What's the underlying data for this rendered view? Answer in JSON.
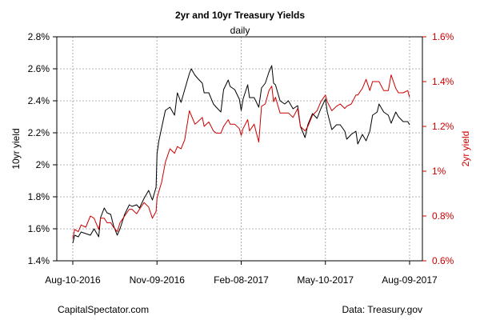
{
  "chart_data": {
    "type": "line",
    "title": "2yr and 10yr Treasury Yields",
    "subtitle": "daily",
    "xlabel": "",
    "ylabel_left": "10yr yield",
    "ylabel_right": "2yr yield",
    "ylim_left": [
      1.4,
      2.8
    ],
    "ylim_right": [
      0.6,
      1.6
    ],
    "grid": true,
    "x_ticks": [
      "Aug-10-2016",
      "Nov-09-2016",
      "Feb-08-2017",
      "May-10-2017",
      "Aug-09-2017"
    ],
    "y_ticks_left": [
      "1.4%",
      "1.6%",
      "1.8%",
      "2%",
      "2.2%",
      "2.4%",
      "2.6%",
      "2.8%"
    ],
    "y_ticks_right": [
      "0.6%",
      "0.8%",
      "1%",
      "1.2%",
      "1.4%",
      "1.6%"
    ],
    "colors": {
      "tenyr": "#000000",
      "twoyr": "#cc0000",
      "grid": "#b0b0b0"
    },
    "series": [
      {
        "axis": "left",
        "values": [
          [
            "2016-08-10",
            1.51
          ],
          [
            "2016-08-12",
            1.56
          ],
          [
            "2016-08-16",
            1.55
          ],
          [
            "2016-08-19",
            1.58
          ],
          [
            "2016-08-24",
            1.57
          ],
          [
            "2016-08-29",
            1.56
          ],
          [
            "2016-09-02",
            1.6
          ],
          [
            "2016-09-07",
            1.55
          ],
          [
            "2016-09-09",
            1.67
          ],
          [
            "2016-09-13",
            1.73
          ],
          [
            "2016-09-16",
            1.7
          ],
          [
            "2016-09-20",
            1.69
          ],
          [
            "2016-09-23",
            1.62
          ],
          [
            "2016-09-27",
            1.56
          ],
          [
            "2016-09-30",
            1.6
          ],
          [
            "2016-10-05",
            1.69
          ],
          [
            "2016-10-10",
            1.75
          ],
          [
            "2016-10-13",
            1.74
          ],
          [
            "2016-10-18",
            1.75
          ],
          [
            "2016-10-21",
            1.73
          ],
          [
            "2016-10-26",
            1.79
          ],
          [
            "2016-10-31",
            1.84
          ],
          [
            "2016-11-04",
            1.78
          ],
          [
            "2016-11-08",
            1.86
          ],
          [
            "2016-11-09",
            2.07
          ],
          [
            "2016-11-11",
            2.15
          ],
          [
            "2016-11-14",
            2.23
          ],
          [
            "2016-11-18",
            2.34
          ],
          [
            "2016-11-23",
            2.36
          ],
          [
            "2016-11-28",
            2.31
          ],
          [
            "2016-12-01",
            2.45
          ],
          [
            "2016-12-05",
            2.39
          ],
          [
            "2016-12-09",
            2.47
          ],
          [
            "2016-12-14",
            2.57
          ],
          [
            "2016-12-16",
            2.6
          ],
          [
            "2016-12-20",
            2.56
          ],
          [
            "2016-12-23",
            2.54
          ],
          [
            "2016-12-28",
            2.51
          ],
          [
            "2016-12-30",
            2.45
          ],
          [
            "2017-01-04",
            2.45
          ],
          [
            "2017-01-09",
            2.38
          ],
          [
            "2017-01-12",
            2.36
          ],
          [
            "2017-01-17",
            2.33
          ],
          [
            "2017-01-20",
            2.47
          ],
          [
            "2017-01-25",
            2.53
          ],
          [
            "2017-01-27",
            2.49
          ],
          [
            "2017-02-01",
            2.47
          ],
          [
            "2017-02-06",
            2.41
          ],
          [
            "2017-02-08",
            2.34
          ],
          [
            "2017-02-10",
            2.41
          ],
          [
            "2017-02-15",
            2.5
          ],
          [
            "2017-02-17",
            2.42
          ],
          [
            "2017-02-22",
            2.42
          ],
          [
            "2017-02-27",
            2.36
          ],
          [
            "2017-03-02",
            2.48
          ],
          [
            "2017-03-06",
            2.51
          ],
          [
            "2017-03-10",
            2.58
          ],
          [
            "2017-03-13",
            2.62
          ],
          [
            "2017-03-15",
            2.51
          ],
          [
            "2017-03-17",
            2.5
          ],
          [
            "2017-03-22",
            2.4
          ],
          [
            "2017-03-27",
            2.38
          ],
          [
            "2017-03-31",
            2.4
          ],
          [
            "2017-04-05",
            2.35
          ],
          [
            "2017-04-10",
            2.37
          ],
          [
            "2017-04-13",
            2.24
          ],
          [
            "2017-04-18",
            2.17
          ],
          [
            "2017-04-21",
            2.25
          ],
          [
            "2017-04-26",
            2.32
          ],
          [
            "2017-05-01",
            2.29
          ],
          [
            "2017-05-05",
            2.35
          ],
          [
            "2017-05-10",
            2.41
          ],
          [
            "2017-05-12",
            2.33
          ],
          [
            "2017-05-17",
            2.22
          ],
          [
            "2017-05-22",
            2.25
          ],
          [
            "2017-05-26",
            2.25
          ],
          [
            "2017-05-31",
            2.21
          ],
          [
            "2017-06-02",
            2.16
          ],
          [
            "2017-06-07",
            2.19
          ],
          [
            "2017-06-12",
            2.21
          ],
          [
            "2017-06-14",
            2.13
          ],
          [
            "2017-06-19",
            2.19
          ],
          [
            "2017-06-23",
            2.15
          ],
          [
            "2017-06-27",
            2.21
          ],
          [
            "2017-06-30",
            2.31
          ],
          [
            "2017-07-05",
            2.33
          ],
          [
            "2017-07-07",
            2.38
          ],
          [
            "2017-07-12",
            2.33
          ],
          [
            "2017-07-17",
            2.31
          ],
          [
            "2017-07-20",
            2.26
          ],
          [
            "2017-07-25",
            2.33
          ],
          [
            "2017-07-28",
            2.3
          ],
          [
            "2017-08-02",
            2.27
          ],
          [
            "2017-08-07",
            2.27
          ],
          [
            "2017-08-09",
            2.25
          ]
        ]
      },
      {
        "axis": "right",
        "values": [
          [
            "2016-08-10",
            0.7
          ],
          [
            "2016-08-12",
            0.74
          ],
          [
            "2016-08-16",
            0.73
          ],
          [
            "2016-08-19",
            0.76
          ],
          [
            "2016-08-24",
            0.75
          ],
          [
            "2016-08-29",
            0.8
          ],
          [
            "2016-09-02",
            0.79
          ],
          [
            "2016-09-07",
            0.74
          ],
          [
            "2016-09-09",
            0.79
          ],
          [
            "2016-09-13",
            0.79
          ],
          [
            "2016-09-16",
            0.77
          ],
          [
            "2016-09-20",
            0.77
          ],
          [
            "2016-09-23",
            0.75
          ],
          [
            "2016-09-27",
            0.73
          ],
          [
            "2016-09-30",
            0.77
          ],
          [
            "2016-10-05",
            0.8
          ],
          [
            "2016-10-10",
            0.83
          ],
          [
            "2016-10-13",
            0.83
          ],
          [
            "2016-10-18",
            0.81
          ],
          [
            "2016-10-21",
            0.83
          ],
          [
            "2016-10-26",
            0.86
          ],
          [
            "2016-10-31",
            0.84
          ],
          [
            "2016-11-04",
            0.79
          ],
          [
            "2016-11-08",
            0.82
          ],
          [
            "2016-11-09",
            0.88
          ],
          [
            "2016-11-11",
            0.91
          ],
          [
            "2016-11-14",
            0.95
          ],
          [
            "2016-11-18",
            1.04
          ],
          [
            "2016-11-23",
            1.1
          ],
          [
            "2016-11-28",
            1.08
          ],
          [
            "2016-12-01",
            1.11
          ],
          [
            "2016-12-05",
            1.1
          ],
          [
            "2016-12-09",
            1.14
          ],
          [
            "2016-12-14",
            1.27
          ],
          [
            "2016-12-16",
            1.25
          ],
          [
            "2016-12-20",
            1.21
          ],
          [
            "2016-12-23",
            1.22
          ],
          [
            "2016-12-28",
            1.24
          ],
          [
            "2016-12-30",
            1.2
          ],
          [
            "2017-01-04",
            1.22
          ],
          [
            "2017-01-09",
            1.18
          ],
          [
            "2017-01-12",
            1.17
          ],
          [
            "2017-01-17",
            1.17
          ],
          [
            "2017-01-20",
            1.2
          ],
          [
            "2017-01-25",
            1.23
          ],
          [
            "2017-01-27",
            1.21
          ],
          [
            "2017-02-01",
            1.21
          ],
          [
            "2017-02-06",
            1.19
          ],
          [
            "2017-02-08",
            1.16
          ],
          [
            "2017-02-10",
            1.19
          ],
          [
            "2017-02-15",
            1.23
          ],
          [
            "2017-02-17",
            1.18
          ],
          [
            "2017-02-22",
            1.21
          ],
          [
            "2017-02-27",
            1.13
          ],
          [
            "2017-03-02",
            1.29
          ],
          [
            "2017-03-06",
            1.3
          ],
          [
            "2017-03-10",
            1.36
          ],
          [
            "2017-03-13",
            1.38
          ],
          [
            "2017-03-15",
            1.31
          ],
          [
            "2017-03-17",
            1.33
          ],
          [
            "2017-03-22",
            1.26
          ],
          [
            "2017-03-27",
            1.26
          ],
          [
            "2017-03-31",
            1.26
          ],
          [
            "2017-04-05",
            1.24
          ],
          [
            "2017-04-10",
            1.28
          ],
          [
            "2017-04-13",
            1.2
          ],
          [
            "2017-04-18",
            1.18
          ],
          [
            "2017-04-21",
            1.2
          ],
          [
            "2017-04-26",
            1.25
          ],
          [
            "2017-05-01",
            1.27
          ],
          [
            "2017-05-05",
            1.31
          ],
          [
            "2017-05-10",
            1.34
          ],
          [
            "2017-05-12",
            1.31
          ],
          [
            "2017-05-17",
            1.27
          ],
          [
            "2017-05-22",
            1.29
          ],
          [
            "2017-05-26",
            1.3
          ],
          [
            "2017-05-31",
            1.28
          ],
          [
            "2017-06-02",
            1.29
          ],
          [
            "2017-06-07",
            1.3
          ],
          [
            "2017-06-12",
            1.34
          ],
          [
            "2017-06-14",
            1.34
          ],
          [
            "2017-06-19",
            1.37
          ],
          [
            "2017-06-23",
            1.41
          ],
          [
            "2017-06-27",
            1.36
          ],
          [
            "2017-06-30",
            1.4
          ],
          [
            "2017-07-05",
            1.4
          ],
          [
            "2017-07-07",
            1.4
          ],
          [
            "2017-07-12",
            1.36
          ],
          [
            "2017-07-17",
            1.36
          ],
          [
            "2017-07-20",
            1.43
          ],
          [
            "2017-07-25",
            1.37
          ],
          [
            "2017-07-28",
            1.35
          ],
          [
            "2017-08-02",
            1.35
          ],
          [
            "2017-08-07",
            1.36
          ],
          [
            "2017-08-09",
            1.33
          ]
        ]
      }
    ]
  },
  "footer": {
    "left": "CapitalSpectator.com",
    "right": "Data: Treasury.gov"
  }
}
